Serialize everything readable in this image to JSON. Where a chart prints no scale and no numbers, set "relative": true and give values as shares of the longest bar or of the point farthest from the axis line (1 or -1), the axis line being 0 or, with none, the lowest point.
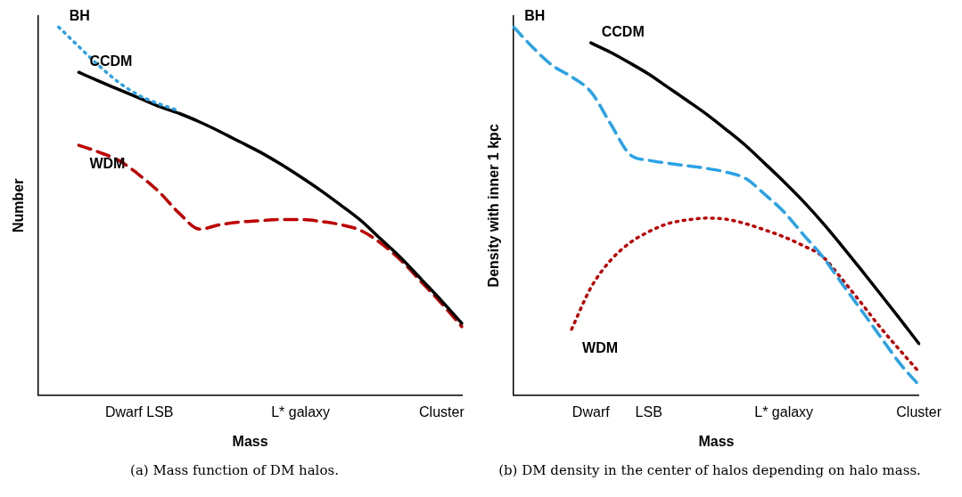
{
  "chart_data": [
    {
      "type": "line",
      "relative": true,
      "title": "(a) Mass function of DM halos.",
      "xlabel": "Mass",
      "ylabel": "Number",
      "legend": false,
      "categories": [
        null,
        null,
        null,
        null,
        null,
        "Dwarf LSB",
        null,
        null,
        null,
        null,
        null,
        null,
        null,
        "L* galaxy",
        null,
        null,
        null,
        null,
        null,
        null,
        "Cluster",
        null
      ],
      "series": [
        {
          "name": "BH",
          "color": "#29a3e8",
          "line_style": "dotted",
          "values": [
            null,
            1.0,
            0.947,
            0.895,
            0.849,
            0.814,
            0.791,
            0.772,
            null,
            null,
            null,
            null,
            null,
            null,
            null,
            null,
            null,
            null,
            null,
            null,
            null,
            null
          ]
        },
        {
          "name": "CCDM",
          "color": "#000000",
          "line_style": "solid",
          "values": [
            null,
            null,
            0.877,
            0.853,
            0.83,
            0.807,
            0.784,
            0.765,
            0.742,
            0.716,
            0.688,
            0.66,
            0.628,
            0.593,
            0.556,
            0.516,
            0.474,
            0.423,
            0.372,
            0.314,
            0.256,
            0.195
          ]
        },
        {
          "name": "WDM",
          "color": "#c00000",
          "line_style": "dashed",
          "values": [
            null,
            null,
            0.679,
            0.66,
            0.637,
            0.598,
            0.551,
            0.493,
            0.451,
            0.463,
            0.47,
            0.474,
            0.477,
            0.477,
            0.472,
            0.463,
            0.447,
            0.412,
            0.365,
            0.307,
            0.249,
            0.186
          ]
        }
      ]
    },
    {
      "type": "line",
      "relative": true,
      "title": "(b) DM density in the center of halos depending on halo mass.",
      "xlabel": "Mass",
      "ylabel": "Density with inner 1 kpc",
      "legend": false,
      "categories": [
        null,
        null,
        null,
        null,
        "Dwarf",
        null,
        null,
        "LSB",
        null,
        null,
        null,
        null,
        null,
        null,
        "L* galaxy",
        null,
        null,
        null,
        null,
        null,
        null,
        "Cluster"
      ],
      "series": [
        {
          "name": "CCDM",
          "color": "#000000",
          "line_style": "solid",
          "values": [
            null,
            null,
            null,
            null,
            0.957,
            0.932,
            0.903,
            0.872,
            0.836,
            0.8,
            0.763,
            0.722,
            0.679,
            0.63,
            0.58,
            0.527,
            0.469,
            0.406,
            0.341,
            0.275,
            0.208,
            0.14
          ]
        },
        {
          "name": "BH",
          "color": "#29a3e8",
          "line_style": "dashed",
          "values": [
            1.0,
            0.944,
            0.896,
            0.865,
            0.824,
            0.739,
            0.655,
            0.638,
            0.63,
            0.623,
            0.616,
            0.606,
            0.589,
            0.546,
            0.498,
            0.437,
            0.377,
            0.304,
            0.232,
            0.159,
            0.087,
            0.027
          ]
        },
        {
          "name": "WDM",
          "color": "#c00000",
          "line_style": "dotted",
          "values": [
            null,
            null,
            null,
            0.179,
            0.292,
            0.365,
            0.413,
            0.444,
            0.466,
            0.476,
            0.481,
            0.478,
            0.466,
            0.449,
            0.43,
            0.406,
            0.377,
            0.316,
            0.251,
            0.184,
            0.123,
            0.063
          ]
        }
      ]
    }
  ]
}
